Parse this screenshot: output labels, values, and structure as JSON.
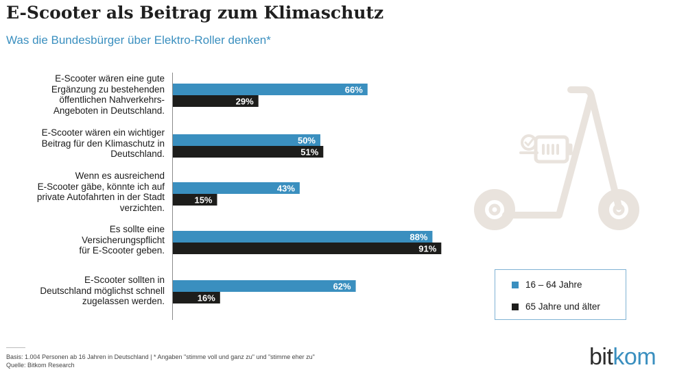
{
  "title": "E-Scooter als Beitrag zum Klimaschutz",
  "subtitle": "Was die Bundesbürger über Elektro-Roller denken*",
  "chart_data": {
    "type": "bar",
    "orientation": "horizontal",
    "categories": [
      "E-Scooter wären eine gute\nErgänzung zu bestehenden\nöffentlichen Nahverkehrs-\nAngeboten in Deutschland.",
      "E-Scooter wären ein wichtiger\nBeitrag für den Klimaschutz in\nDeutschland.",
      "Wenn es ausreichend\nE-Scooter gäbe, könnte ich auf\nprivate  Autofahrten in der Stadt\nverzichten.",
      "Es sollte eine\nVersicherungspflicht\nfür E-Scooter geben.",
      "E-Scooter sollten in\nDeutschland möglichst schnell\nzugelassen werden."
    ],
    "series": [
      {
        "name": "16 – 64 Jahre",
        "color": "#3a8fbf",
        "values": [
          66,
          50,
          43,
          88,
          62
        ],
        "labels": [
          "66%",
          "50%",
          "43%",
          "88%",
          "62%"
        ]
      },
      {
        "name": "65 Jahre und älter",
        "color": "#1d1d1b",
        "values": [
          29,
          51,
          15,
          91,
          16
        ],
        "labels": [
          "29%",
          "51%",
          "15%",
          "91%",
          "16%"
        ]
      }
    ],
    "xlim": [
      0,
      100
    ],
    "unit": "%",
    "grid": false,
    "legend": "right"
  },
  "illustration": {
    "icon": "e-scooter-battery-icon",
    "color": "#e9e3dd"
  },
  "footnote": {
    "basis": "Basis: 1.004 Personen ab 16 Jahren in Deutschland | * Angaben \"stimme voll und ganz zu\" und \"stimme eher zu\"",
    "source": "Quelle: Bitkom Research"
  },
  "brand": {
    "part1": "bit",
    "part2": "kom"
  }
}
